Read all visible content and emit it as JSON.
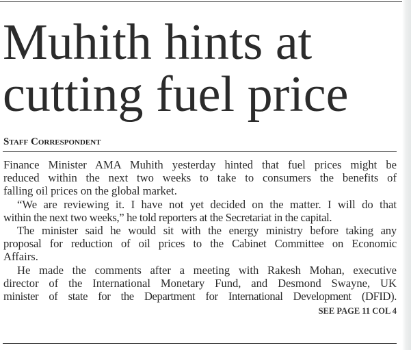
{
  "headline": [
    "Muhith hints at",
    "cutting fuel price"
  ],
  "byline": "Staff Correspondent",
  "body_lines": [
    "Finance Minister AMA Muhith yesterday hinted that fuel prices might be",
    "reduced within the next two weeks to take to consumers the benefits of",
    "falling oil prices on the global market.",
    "“We are reviewing it. I have not yet decided on the matter. I will do that",
    "within the next two weeks,” he told reporters at the Secretariat in the capital.",
    "The minister said he would sit with the energy ministry before taking any",
    "proposal for reduction of oil prices to the Cabinet Committee on Economic",
    "Affairs.",
    "He made the comments after a meeting with Rakesh Mohan, executive",
    "director of the International Monetary Fund, and Desmond Swayne, UK",
    "minister of state for the Department for International Development (DFID)."
  ],
  "jump_line": "SEE PAGE 11 COL 4"
}
